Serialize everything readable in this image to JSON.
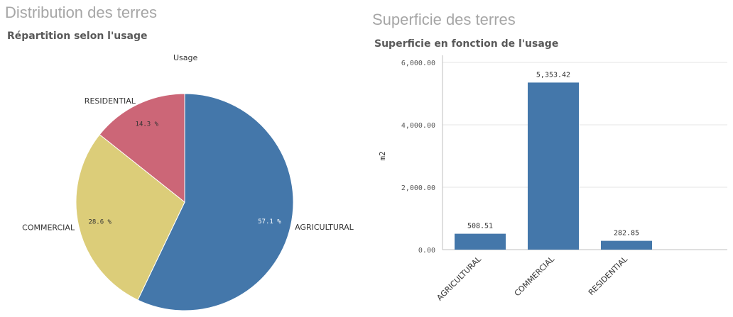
{
  "left": {
    "panel_title": "Distribution des terres",
    "chart_title": "Répartition selon l'usage"
  },
  "right": {
    "panel_title": "Superficie des terres",
    "chart_title": "Superficie en fonction de l'usage"
  },
  "chart_data": [
    {
      "type": "pie",
      "title": "Répartition selon l'usage",
      "legend_title": "Usage",
      "slices": [
        {
          "label": "AGRICULTURAL",
          "value": 57.1,
          "value_label": "57.1 %",
          "color": "#4477aa"
        },
        {
          "label": "COMMERCIAL",
          "value": 28.6,
          "value_label": "28.6 %",
          "color": "#dccd79"
        },
        {
          "label": "RESIDENTIAL",
          "value": 14.3,
          "value_label": "14.3 %",
          "color": "#cc6677"
        }
      ]
    },
    {
      "type": "bar",
      "title": "Superficie en fonction de l'usage",
      "categories": [
        "AGRICULTURAL",
        "COMMERCIAL",
        "RESIDENTIAL"
      ],
      "values": [
        508.51,
        5353.42,
        282.85
      ],
      "value_labels": [
        "508.51",
        "5,353.42",
        "282.85"
      ],
      "ylabel": "m2",
      "ylim": [
        0,
        6000
      ],
      "yticks": [
        0,
        2000,
        4000,
        6000
      ],
      "ytick_labels": [
        "0.00",
        "2,000.00",
        "4,000.00",
        "6,000.00"
      ],
      "bar_color": "#4477aa",
      "grid": true
    }
  ]
}
